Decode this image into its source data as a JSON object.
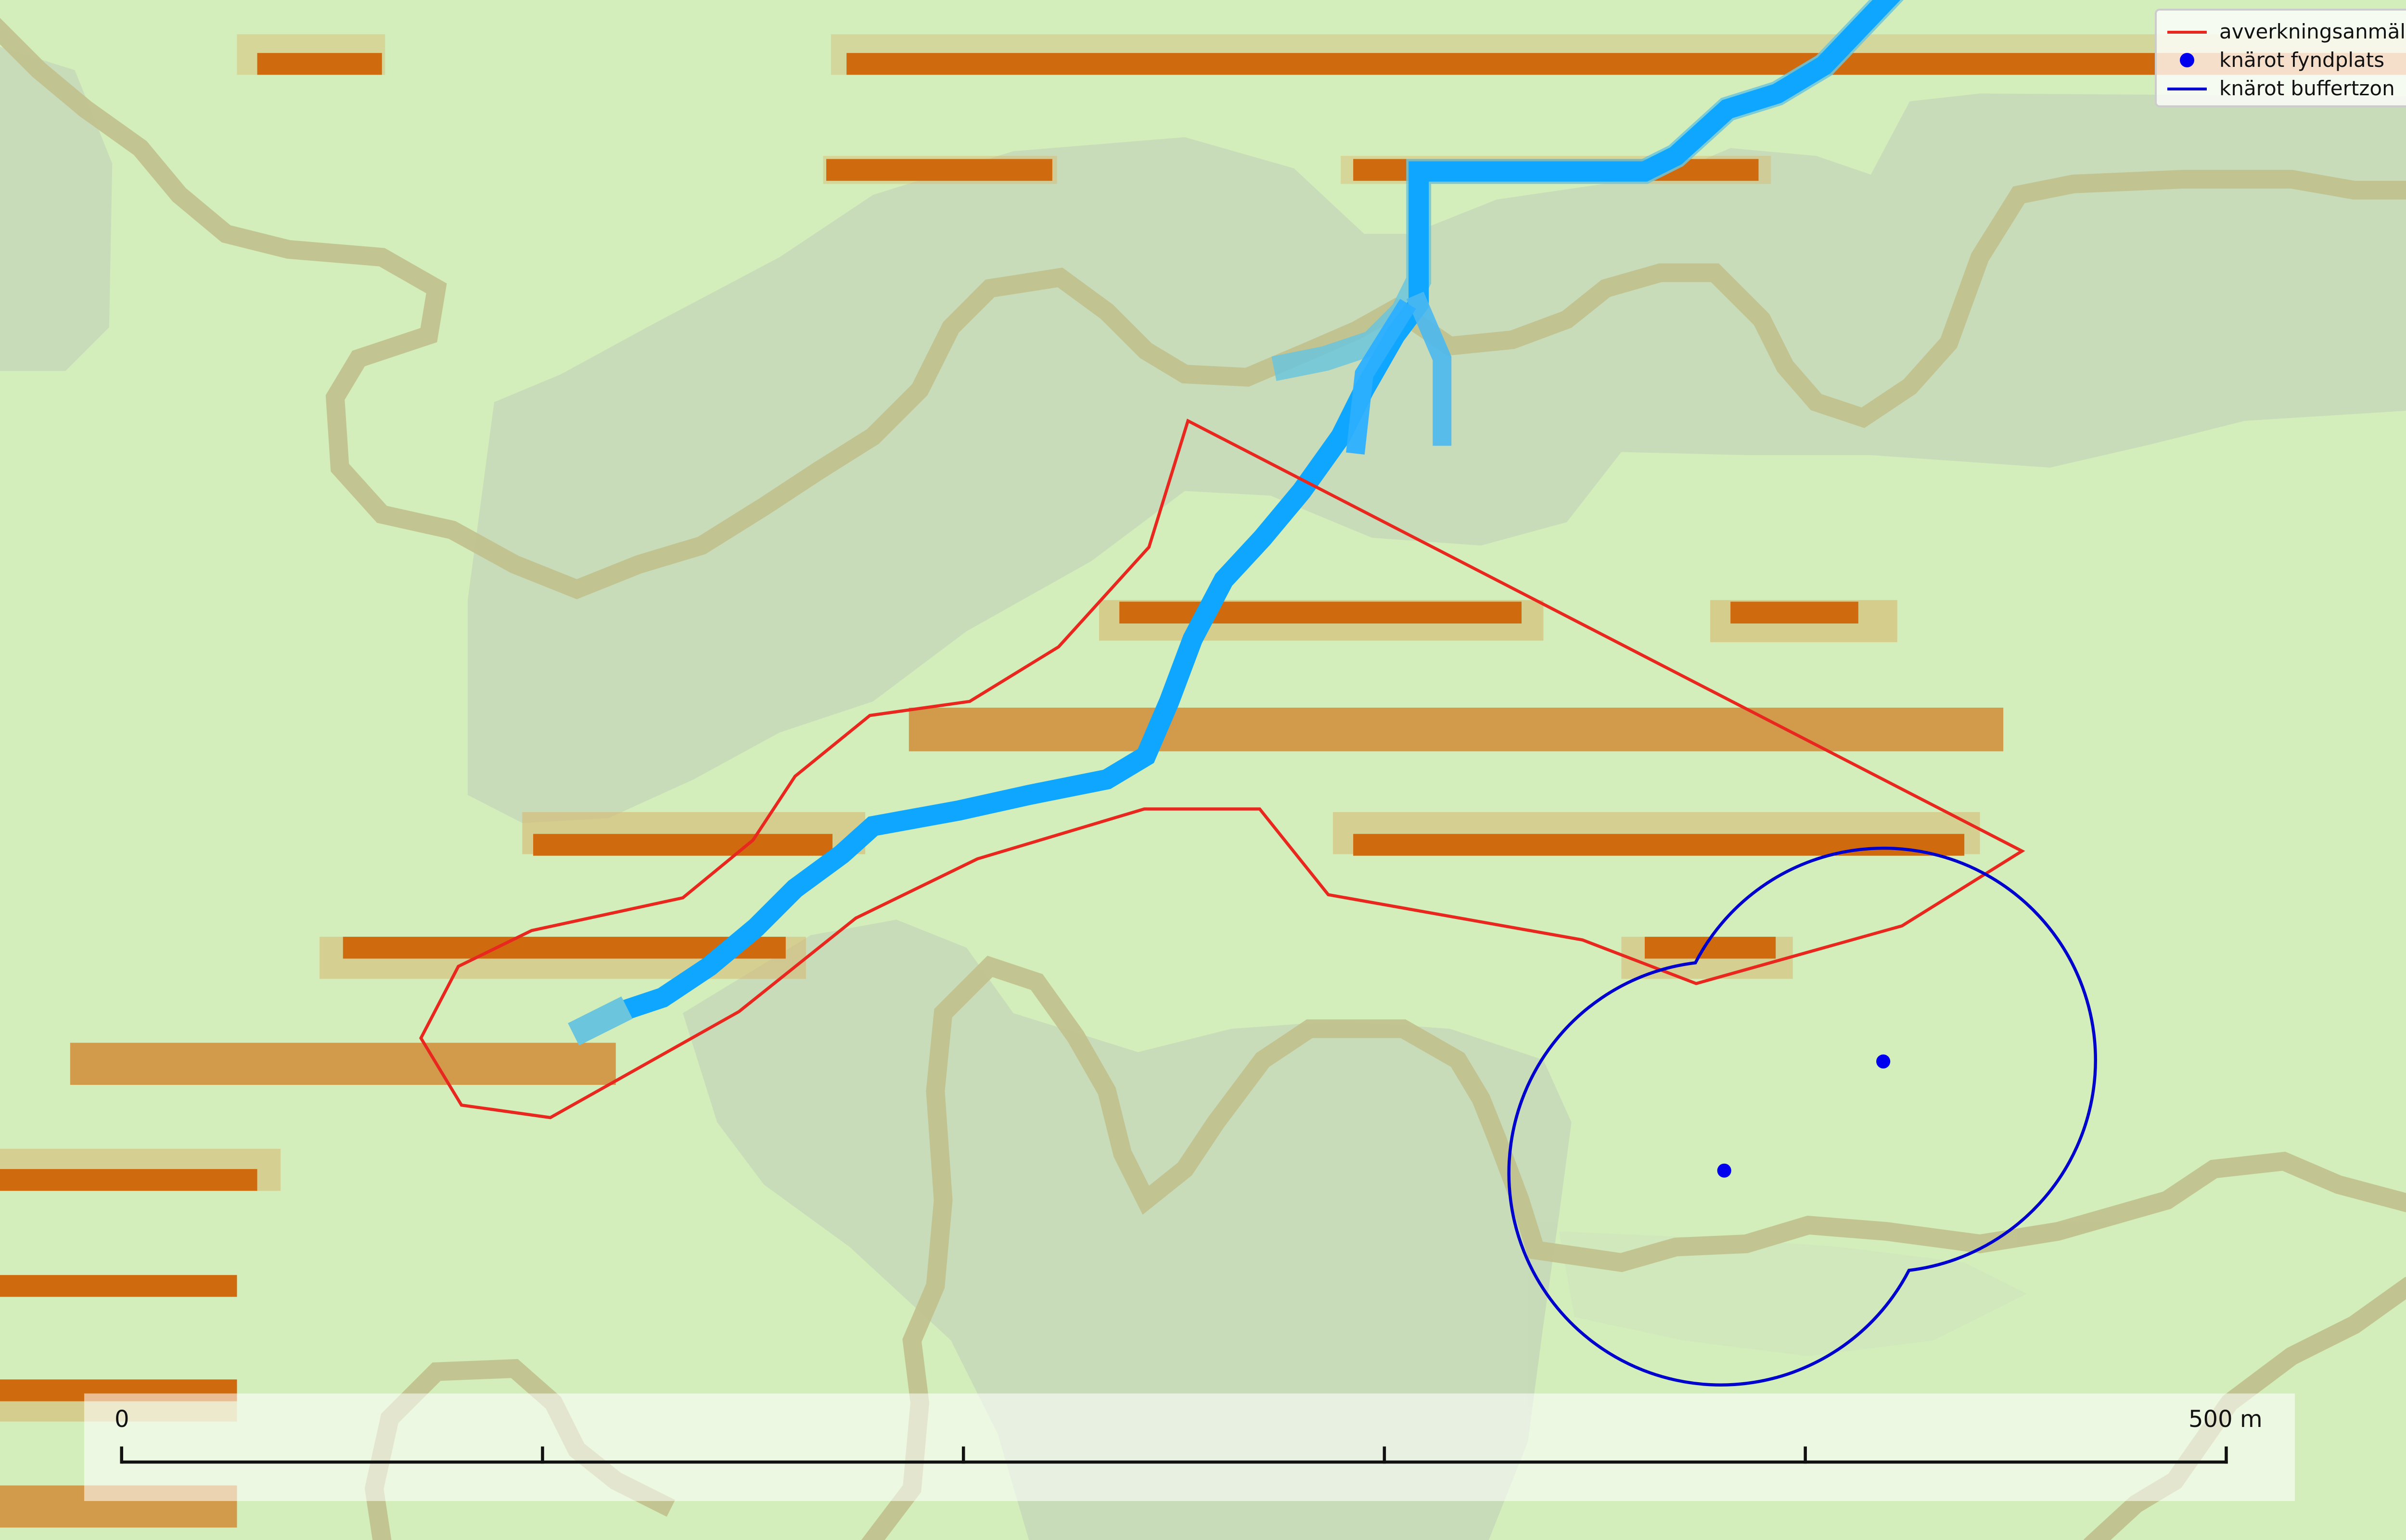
{
  "map": {
    "legend": {
      "items": [
        {
          "label": "avverkningsanmälan",
          "symbol": "line",
          "color": "#e8271f"
        },
        {
          "label": "knärot fyndplats",
          "symbol": "dot",
          "color": "#0000ee"
        },
        {
          "label": "knärot buffertzon",
          "symbol": "line",
          "color": "#0000cc"
        }
      ]
    },
    "scale_bar": {
      "start_label": "0",
      "end_label": "500 m"
    },
    "colors": {
      "background": "#d3eebb",
      "relief": "#c8dbb9",
      "contour": "#c0c08d",
      "road": "#cf6a0f",
      "road_halo": "#d7b86f",
      "stream": "#0ea6ff",
      "stream_light": "#6bc5dc",
      "harvest_polygon": "#e8271f",
      "buffer_zone": "#0000cc",
      "find_point": "#0000ee"
    }
  }
}
